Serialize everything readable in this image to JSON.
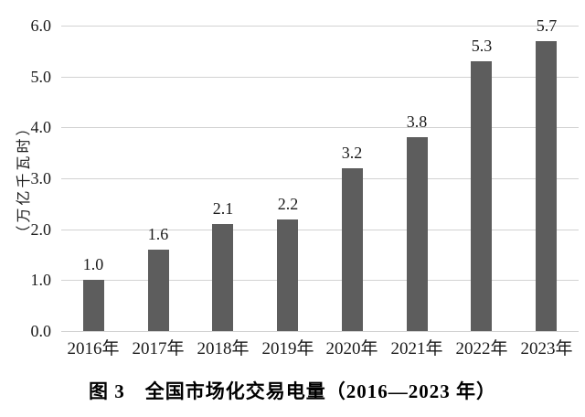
{
  "chart_data": {
    "type": "bar",
    "title": "图 3　全国市场化交易电量（2016—2023 年）",
    "ylabel": "（万亿千瓦时）",
    "xlabel": "",
    "categories": [
      "2016年",
      "2017年",
      "2018年",
      "2019年",
      "2020年",
      "2021年",
      "2022年",
      "2023年"
    ],
    "values": [
      1.0,
      1.6,
      2.1,
      2.2,
      3.2,
      3.8,
      5.3,
      5.7
    ],
    "data_labels": [
      "1.0",
      "1.6",
      "2.1",
      "2.2",
      "3.2",
      "3.8",
      "5.3",
      "5.7"
    ],
    "y_ticks": [
      "6.0",
      "5.0",
      "4.0",
      "3.0",
      "2.0",
      "1.0",
      "0.0"
    ],
    "ylim": [
      0,
      6
    ],
    "grid": true,
    "legend": "none",
    "bar_color": "#5d5d5d",
    "gridline_color": "#d2d2d2",
    "text_color": "#1a1a1a",
    "background_color": "#ffffff"
  }
}
